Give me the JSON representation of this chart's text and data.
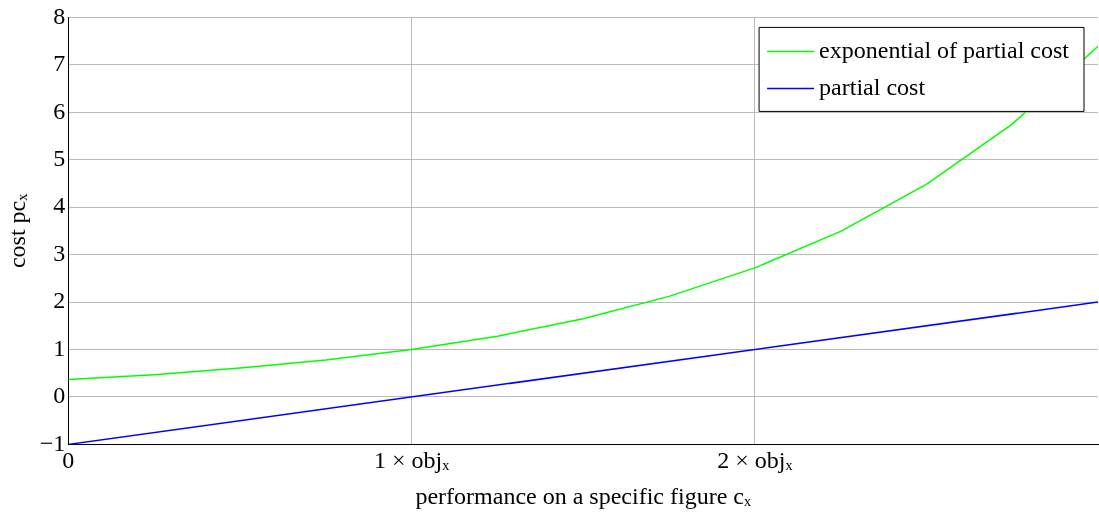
{
  "chart_data": {
    "type": "line",
    "xlabel": "performance on a specific figure cₓ",
    "ylabel": "cost pcₓ",
    "xlim": [
      0,
      3
    ],
    "xticks": [
      0,
      {
        "value": 1,
        "label": "1 × objₓ"
      },
      {
        "value": 2,
        "label": "2 × objₓ"
      }
    ],
    "ylim": [
      -1,
      8
    ],
    "yticks": [
      -1,
      0,
      1,
      2,
      3,
      4,
      5,
      6,
      7,
      8
    ],
    "grid": true,
    "legend": "top right",
    "marker": "none",
    "line_style": "solid",
    "series": [
      {
        "name": "exponential of partial cost",
        "color": "#00ff00",
        "x": [
          0,
          0.25,
          0.5,
          0.75,
          1,
          1.25,
          1.5,
          1.75,
          2,
          2.25,
          2.5,
          2.75,
          3
        ],
        "values": [
          0.37,
          0.47,
          0.61,
          0.78,
          1,
          1.28,
          1.65,
          2.12,
          2.72,
          3.49,
          4.48,
          5.75,
          7.39
        ]
      },
      {
        "name": "partial cost",
        "color": "#0000ff",
        "x": [
          0,
          3
        ],
        "values": [
          -1,
          2
        ]
      }
    ]
  }
}
